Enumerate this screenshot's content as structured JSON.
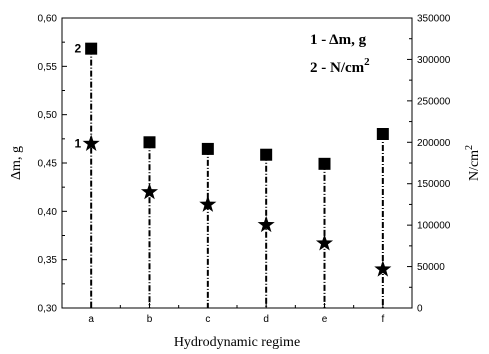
{
  "chart_data": {
    "type": "scatter",
    "categories": [
      "a",
      "b",
      "c",
      "d",
      "e",
      "f"
    ],
    "xlabel": "Hydrodynamic regime",
    "ylabel_left": "Δm, g",
    "ylabel_right": "N/cm",
    "ylabel_right_sup": "2",
    "y_left": {
      "range": [
        0.3,
        0.6
      ],
      "ticks": [
        "0,30",
        "0,35",
        "0,40",
        "0,45",
        "0,50",
        "0,55",
        "0,60"
      ]
    },
    "y_right": {
      "range": [
        0,
        350000
      ],
      "ticks": [
        "0",
        "50000",
        "100000",
        "150000",
        "200000",
        "250000",
        "300000",
        "350000"
      ]
    },
    "series": [
      {
        "name": "1 - Δm, g",
        "axis": "left",
        "marker": "star",
        "values": [
          0.47,
          0.42,
          0.407,
          0.386,
          0.367,
          0.34
        ]
      },
      {
        "name": "2 - N/cm2",
        "axis": "right",
        "marker": "square",
        "values": [
          313000,
          200000,
          192000,
          185000,
          174000,
          210000
        ]
      }
    ],
    "legend": {
      "line1": "1 - Δm, g",
      "line2_text": "2 - N/cm",
      "line2_sup": "2",
      "placement": "top-right"
    },
    "point_labels": [
      {
        "series": 1,
        "index": 0,
        "text": "2"
      },
      {
        "series": 0,
        "index": 0,
        "text": "1"
      }
    ],
    "grid": false
  }
}
